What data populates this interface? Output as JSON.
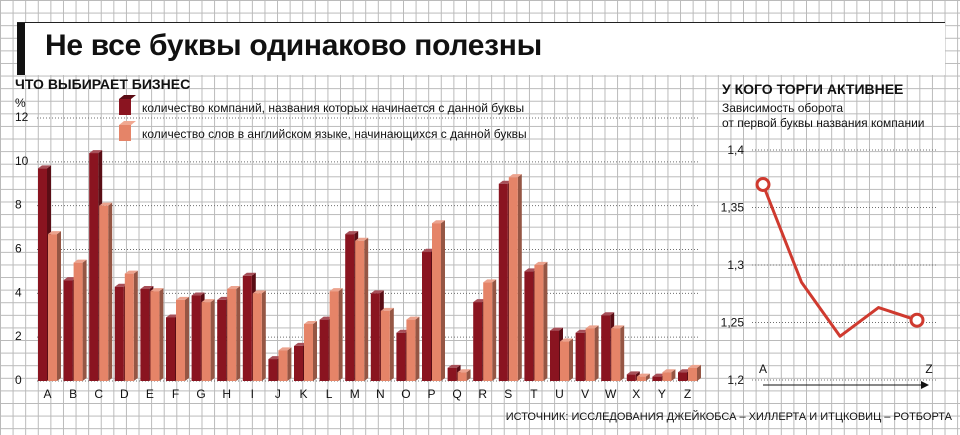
{
  "title": "Не все буквы одинаково полезны",
  "source": "ИСТОЧНИК: ИССЛЕДОВАНИЯ ДЖЕЙКОБСА – ХИЛЛЕРТА И ИТЦКОВИЦ – РОТБОРТА",
  "colors": {
    "companies": "#8a1420",
    "words": "#e58468",
    "line": "#cf3a2f",
    "text": "#111111"
  },
  "chart_data": [
    {
      "type": "bar",
      "title": "ЧТО ВЫБИРАЕТ БИЗНЕС",
      "ylabel": "%",
      "ylim": [
        0,
        12
      ],
      "yticks": [
        0,
        2,
        4,
        6,
        8,
        10,
        12
      ],
      "categories": [
        "A",
        "B",
        "C",
        "D",
        "E",
        "F",
        "G",
        "H",
        "I",
        "J",
        "K",
        "L",
        "M",
        "N",
        "O",
        "P",
        "Q",
        "R",
        "S",
        "T",
        "U",
        "V",
        "W",
        "X",
        "Y",
        "Z"
      ],
      "series": [
        {
          "name": "количество компаний, названия которых начинается с данной буквы",
          "values": [
            9.7,
            4.6,
            10.4,
            4.3,
            4.2,
            2.9,
            3.9,
            3.7,
            4.8,
            1.0,
            1.6,
            2.8,
            6.7,
            4.0,
            2.2,
            5.9,
            0.6,
            3.6,
            9.0,
            5.0,
            2.3,
            2.2,
            3.0,
            0.3,
            0.2,
            0.4
          ]
        },
        {
          "name": "количество слов в английском языке, начинающихся с данной буквы",
          "values": [
            6.7,
            5.4,
            8.0,
            4.9,
            4.1,
            3.7,
            3.6,
            4.2,
            4.0,
            1.4,
            2.6,
            4.1,
            6.4,
            3.2,
            2.8,
            7.2,
            0.4,
            4.5,
            9.3,
            5.3,
            1.8,
            2.4,
            2.4,
            0.2,
            0.4,
            0.6
          ]
        }
      ]
    },
    {
      "type": "line",
      "title": "У КОГО ТОРГИ АКТИВНЕЕ",
      "subtitle": [
        "Зависимость оборота",
        "от первой буквы названия компании"
      ],
      "ylim": [
        1.2,
        1.4
      ],
      "yticks": [
        "1,2",
        "1,25",
        "1,3",
        "1,35",
        "1,4"
      ],
      "xticks": [
        "A",
        "Z"
      ],
      "x": [
        0,
        1,
        2,
        3,
        4
      ],
      "y": [
        1.37,
        1.285,
        1.238,
        1.263,
        1.252
      ]
    }
  ]
}
